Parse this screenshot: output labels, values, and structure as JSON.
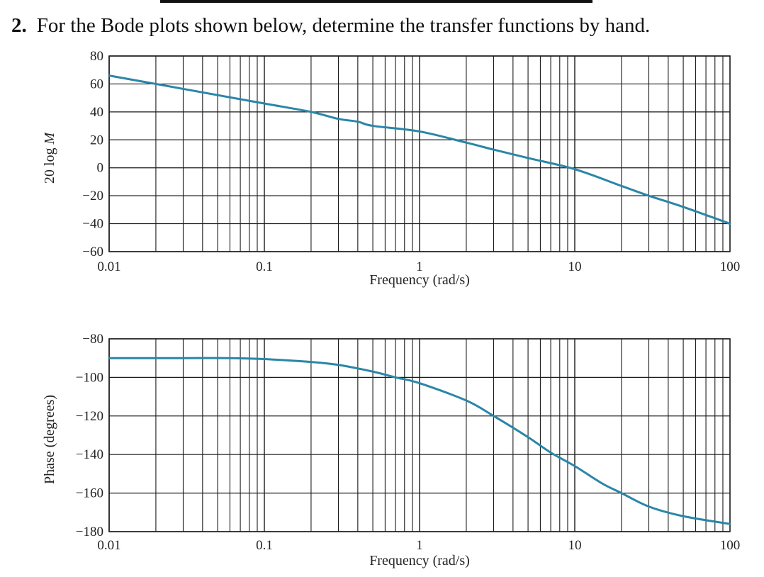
{
  "problem": {
    "number": "2.",
    "text": "For the Bode plots shown below, determine the transfer functions by hand."
  },
  "colors": {
    "curve": "#2a86a8",
    "grid": "#1a1a1a"
  },
  "chart_data": [
    {
      "type": "line",
      "title": "",
      "xlabel": "Frequency (rad/s)",
      "ylabel": "20 log M",
      "xscale": "log",
      "xlim": [
        0.01,
        100
      ],
      "ylim": [
        -60,
        80
      ],
      "xticks": [
        "0.01",
        "0.1",
        "1",
        "10",
        "100"
      ],
      "yticks": [
        "80",
        "60",
        "40",
        "20",
        "0",
        "−20",
        "−40",
        "−60"
      ],
      "grid": true,
      "series": [
        {
          "x": [
            0.01,
            0.02,
            0.05,
            0.1,
            0.2,
            0.3,
            0.4,
            0.5,
            1,
            2,
            3,
            5,
            10,
            20,
            30,
            50,
            100
          ],
          "y": [
            66,
            60,
            52,
            46,
            40,
            35,
            33,
            30,
            26,
            18,
            13,
            7,
            -1,
            -13,
            -20,
            -28,
            -40
          ]
        }
      ]
    },
    {
      "type": "line",
      "title": "",
      "xlabel": "Frequency (rad/s)",
      "ylabel": "Phase (degrees)",
      "xscale": "log",
      "xlim": [
        0.01,
        100
      ],
      "ylim": [
        -180,
        -80
      ],
      "xticks": [
        "0.01",
        "0.1",
        "1",
        "10",
        "100"
      ],
      "yticks": [
        "−80",
        "−100",
        "−120",
        "−140",
        "−160",
        "−180"
      ],
      "grid": true,
      "series": [
        {
          "x": [
            0.01,
            0.03,
            0.06,
            0.1,
            0.2,
            0.3,
            0.5,
            0.7,
            1,
            2,
            3,
            5,
            7,
            10,
            15,
            20,
            30,
            50,
            100
          ],
          "y": [
            -90,
            -90,
            -90,
            -90.5,
            -92,
            -93.5,
            -97,
            -100,
            -103,
            -112,
            -120,
            -131,
            -139,
            -146,
            -155,
            -160,
            -167,
            -172,
            -176
          ]
        }
      ]
    }
  ]
}
